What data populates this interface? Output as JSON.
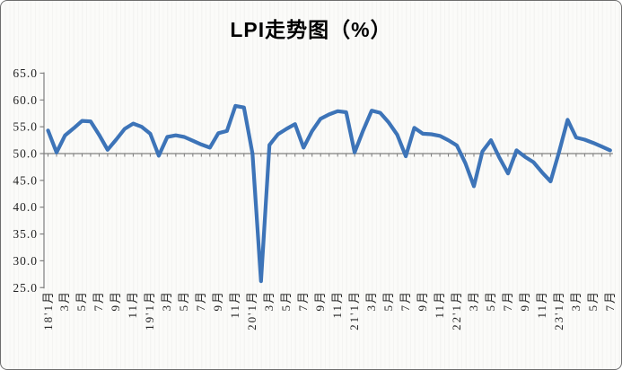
{
  "chart_title": "LPI走势图（%）",
  "chart_data": {
    "type": "line",
    "title": "LPI走势图（%）",
    "x_interval": "monthly",
    "x_start": "2018-01",
    "x_end": "2023-07",
    "x_tick_labels": [
      "18'1月",
      "3月",
      "5月",
      "7月",
      "9月",
      "11月",
      "19'1月",
      "3月",
      "5月",
      "7月",
      "9月",
      "11月",
      "20'1月",
      "3月",
      "5月",
      "7月",
      "9月",
      "11月",
      "21'1月",
      "3月",
      "5月",
      "7月",
      "9月",
      "11月",
      "22'1月",
      "3月",
      "5月",
      "7月",
      "9月",
      "11月",
      "23'1月",
      "3月",
      "5月",
      "7月"
    ],
    "y_tick_labels": [
      "65.0",
      "60.0",
      "55.0",
      "50.0",
      "45.0",
      "40.0",
      "35.0",
      "30.0",
      "25.0"
    ],
    "ylim": [
      25,
      65
    ],
    "ytick_step": 5,
    "axis_crosses_at": 50,
    "legend": "none",
    "grid": "faint-vertical-pinstripes",
    "series": [
      {
        "name": "LPI",
        "values": [
          54.3,
          50.2,
          53.4,
          54.7,
          56.1,
          56.0,
          53.5,
          50.7,
          52.6,
          54.6,
          55.6,
          55.0,
          53.7,
          49.6,
          53.1,
          53.4,
          53.1,
          52.4,
          51.7,
          51.1,
          53.8,
          54.2,
          58.9,
          58.6,
          50.0,
          26.2,
          51.6,
          53.6,
          54.6,
          55.5,
          51.1,
          54.2,
          56.5,
          57.3,
          57.9,
          57.7,
          50.2,
          54.3,
          58.0,
          57.6,
          55.8,
          53.5,
          49.5,
          54.8,
          53.7,
          53.6,
          53.3,
          52.5,
          51.5,
          48.2,
          43.9,
          50.4,
          52.5,
          49.2,
          46.3,
          50.6,
          49.4,
          48.4,
          46.5,
          44.8,
          50.3,
          56.3,
          53.0,
          52.6,
          52.0,
          51.3,
          50.6
        ]
      }
    ],
    "line_color": "#3D74B8",
    "axis_color": "#7f7f7f",
    "label_color": "#242424"
  }
}
